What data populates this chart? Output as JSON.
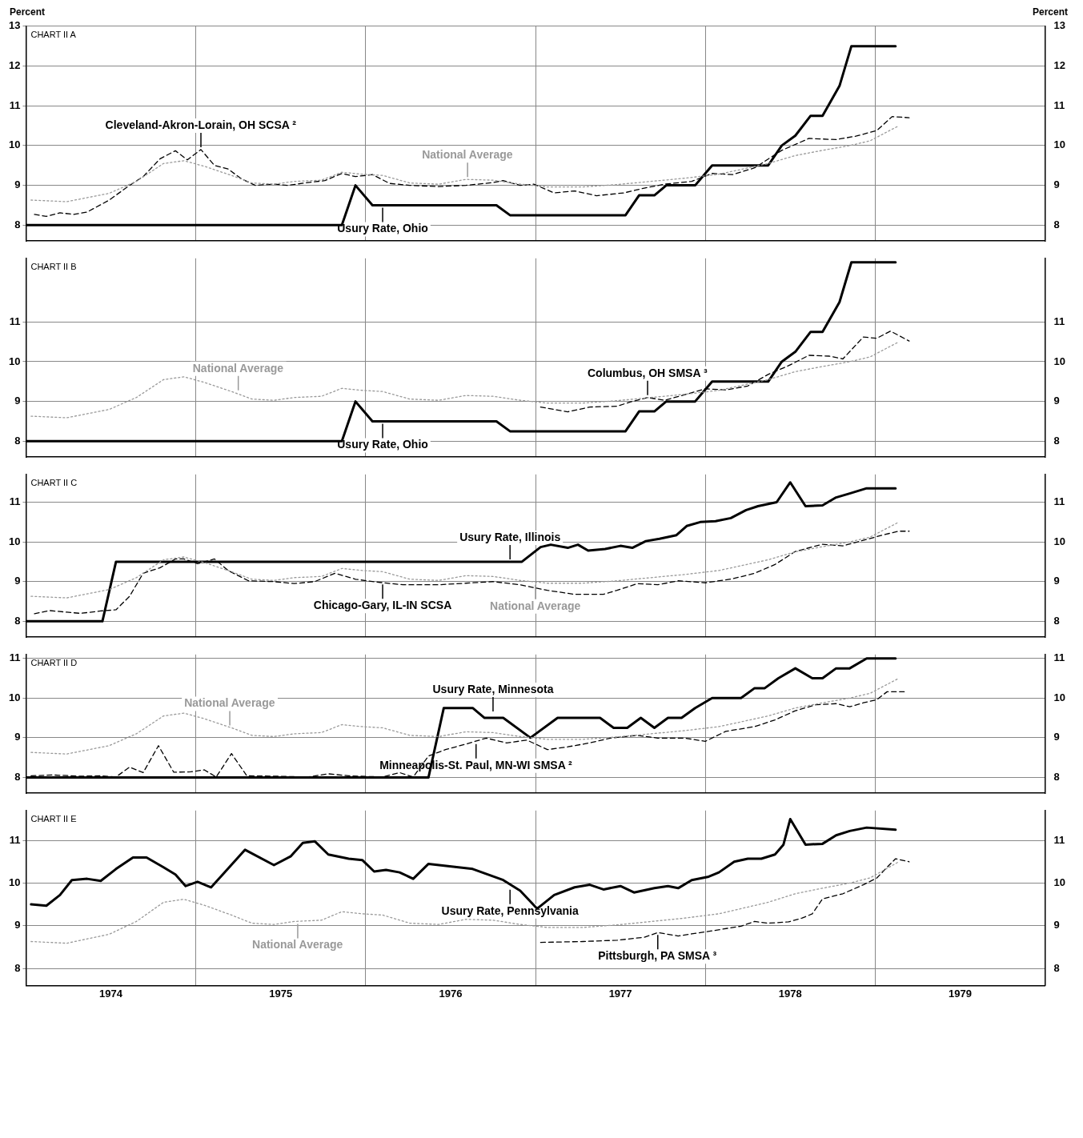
{
  "chart_data": [
    {
      "type": "line",
      "ylabel": "Percent",
      "y2label": "Percent",
      "annotations": [
        "CHART II A",
        {
          "text": "Cleveland-Akron-Lorain, OH SCSA ²",
          "x": 1975.03,
          "y": 9.9
        },
        {
          "text": "National Average",
          "x": 1976.6,
          "y": 9.15
        },
        {
          "text": "Usury Rate, Ohio",
          "x": 1976.1,
          "y": 8.5
        }
      ],
      "xlim": [
        1974,
        1980
      ],
      "xticks": [
        1974,
        1975,
        1976,
        1977,
        1978,
        1979,
        1980
      ],
      "ylim": [
        7.6,
        13
      ],
      "yticks": [
        8,
        9,
        10,
        11,
        12,
        13
      ],
      "y2lim": [
        7.6,
        13
      ],
      "y2ticks": [
        8,
        9,
        10,
        11,
        12,
        13
      ],
      "grid": true,
      "tick_labels": "y",
      "series": [
        {
          "color": "#999999",
          "line_style": "dotted",
          "x": [
            1974.03,
            1974.24,
            1974.49,
            1974.65,
            1974.81,
            1974.93,
            1975.05,
            1975.21,
            1975.33,
            1975.46,
            1975.58,
            1975.74,
            1975.86,
            1975.98,
            1976.1,
            1976.26,
            1976.43,
            1976.59,
            1976.75,
            1976.91,
            1977.07,
            1977.28,
            1977.48,
            1977.68,
            1977.88,
            1978.08,
            1978.21,
            1978.37,
            1978.53,
            1978.69,
            1978.85,
            1978.97,
            1979.05,
            1979.14
          ],
          "values": [
            8.63,
            8.59,
            8.8,
            9.1,
            9.55,
            9.62,
            9.48,
            9.25,
            9.06,
            9.03,
            9.1,
            9.13,
            9.33,
            9.28,
            9.25,
            9.06,
            9.03,
            9.15,
            9.13,
            9.03,
            8.96,
            8.96,
            9.02,
            9.1,
            9.18,
            9.28,
            9.4,
            9.55,
            9.75,
            9.88,
            10.0,
            10.12,
            10.3,
            10.5
          ]
        },
        {
          "color": "#000000",
          "line_style": "dashed",
          "x": [
            1974.05,
            1974.12,
            1974.2,
            1974.28,
            1974.36,
            1974.49,
            1974.61,
            1974.69,
            1974.79,
            1974.88,
            1974.95,
            1975.03,
            1975.11,
            1975.19,
            1975.27,
            1975.35,
            1975.46,
            1975.54,
            1975.66,
            1975.76,
            1975.86,
            1975.94,
            1976.04,
            1976.14,
            1976.26,
            1976.43,
            1976.59,
            1976.75,
            1976.81,
            1976.91,
            1976.99,
            1977.11,
            1977.23,
            1977.36,
            1977.52,
            1977.64,
            1977.76,
            1977.92,
            1978.04,
            1978.16,
            1978.29,
            1978.45,
            1978.61,
            1978.77,
            1978.89,
            1979.01,
            1979.1,
            1979.2
          ],
          "values": [
            8.27,
            8.22,
            8.31,
            8.27,
            8.33,
            8.63,
            9.0,
            9.22,
            9.67,
            9.87,
            9.64,
            9.9,
            9.5,
            9.41,
            9.16,
            9.0,
            9.03,
            9.0,
            9.07,
            9.12,
            9.3,
            9.22,
            9.27,
            9.05,
            9.0,
            8.97,
            9.0,
            9.07,
            9.12,
            9.0,
            9.03,
            8.81,
            8.86,
            8.74,
            8.81,
            8.93,
            9.03,
            9.1,
            9.3,
            9.27,
            9.44,
            9.88,
            10.18,
            10.15,
            10.24,
            10.38,
            10.73,
            10.7
          ]
        },
        {
          "color": "#000000",
          "line_style": "solid",
          "x": [
            1974.0,
            1975.86,
            1975.94,
            1976.04,
            1976.77,
            1976.85,
            1977.53,
            1977.61,
            1977.7,
            1977.77,
            1977.94,
            1978.04,
            1978.37,
            1978.45,
            1978.53,
            1978.62,
            1978.69,
            1978.79,
            1978.86,
            1979.12
          ],
          "values": [
            8,
            8,
            9,
            8.5,
            8.5,
            8.25,
            8.25,
            8.75,
            8.75,
            9,
            9,
            9.5,
            9.5,
            10,
            10.25,
            10.75,
            10.75,
            11.5,
            12.5,
            12.5
          ]
        }
      ]
    },
    {
      "type": "line",
      "annotations": [
        "CHART II B",
        {
          "text": "National Average",
          "x": 1975.25,
          "y": 9.22
        },
        {
          "text": "Columbus, OH SMSA ³",
          "x": 1977.66,
          "y": 9.1
        },
        {
          "text": "Usury Rate, Ohio",
          "x": 1976.1,
          "y": 8.5
        }
      ],
      "xlim": [
        1974,
        1980
      ],
      "xticks": [
        1974,
        1975,
        1976,
        1977,
        1978,
        1979,
        1980
      ],
      "ylim": [
        7.6,
        12.6
      ],
      "yticks": [
        8,
        9,
        10,
        11
      ],
      "y2lim": [
        7.6,
        12.6
      ],
      "y2ticks": [
        8,
        9,
        10,
        11
      ],
      "grid": true,
      "tick_labels": "y",
      "series": [
        {
          "color": "#999999",
          "line_style": "dotted",
          "x": [
            1974.03,
            1974.24,
            1974.49,
            1974.65,
            1974.81,
            1974.93,
            1975.05,
            1975.21,
            1975.33,
            1975.46,
            1975.58,
            1975.74,
            1975.86,
            1975.98,
            1976.1,
            1976.26,
            1976.43,
            1976.59,
            1976.75,
            1976.91,
            1977.07,
            1977.28,
            1977.48,
            1977.68,
            1977.88,
            1978.08,
            1978.21,
            1978.37,
            1978.53,
            1978.69,
            1978.85,
            1978.97,
            1979.05,
            1979.14
          ],
          "values": [
            8.63,
            8.59,
            8.8,
            9.1,
            9.55,
            9.62,
            9.48,
            9.25,
            9.06,
            9.03,
            9.1,
            9.13,
            9.33,
            9.28,
            9.25,
            9.06,
            9.03,
            9.15,
            9.13,
            9.03,
            8.96,
            8.96,
            9.02,
            9.1,
            9.18,
            9.28,
            9.4,
            9.55,
            9.75,
            9.88,
            10.0,
            10.12,
            10.3,
            10.5
          ]
        },
        {
          "color": "#000000",
          "line_style": "dashed",
          "x": [
            1977.03,
            1977.19,
            1977.32,
            1977.48,
            1977.56,
            1977.66,
            1977.76,
            1977.88,
            1978.0,
            1978.12,
            1978.25,
            1978.37,
            1978.49,
            1978.61,
            1978.73,
            1978.81,
            1978.93,
            1979.01,
            1979.09,
            1979.2
          ],
          "values": [
            8.86,
            8.74,
            8.86,
            8.88,
            8.99,
            9.1,
            9.03,
            9.17,
            9.32,
            9.29,
            9.39,
            9.68,
            9.9,
            10.16,
            10.14,
            10.07,
            10.62,
            10.59,
            10.77,
            10.52
          ]
        },
        {
          "color": "#000000",
          "line_style": "solid",
          "x": [
            1974.0,
            1975.86,
            1975.94,
            1976.04,
            1976.77,
            1976.85,
            1977.53,
            1977.61,
            1977.7,
            1977.77,
            1977.94,
            1978.04,
            1978.37,
            1978.45,
            1978.53,
            1978.62,
            1978.69,
            1978.79,
            1978.86,
            1979.12
          ],
          "values": [
            8,
            8,
            9,
            8.5,
            8.5,
            8.25,
            8.25,
            8.75,
            8.75,
            9,
            9,
            9.5,
            9.5,
            10,
            10.25,
            10.75,
            10.75,
            11.5,
            12.5,
            12.5
          ]
        }
      ]
    },
    {
      "type": "line",
      "annotations": [
        "CHART II C",
        {
          "text": "Usury Rate, Illinois",
          "x": 1976.85,
          "y": 9.5
        },
        {
          "text": "National Average",
          "x": 1977.0,
          "y": 8.98
        },
        {
          "text": "Chicago-Gary, IL-IN SCSA",
          "x": 1976.1,
          "y": 8.99
        }
      ],
      "xlim": [
        1974,
        1980
      ],
      "xticks": [
        1974,
        1975,
        1976,
        1977,
        1978,
        1979,
        1980
      ],
      "ylim": [
        7.6,
        11.7
      ],
      "yticks": [
        8,
        9,
        10,
        11
      ],
      "y2lim": [
        7.6,
        11.7
      ],
      "y2ticks": [
        8,
        9,
        10,
        11
      ],
      "grid": true,
      "tick_labels": "y",
      "series": [
        {
          "color": "#999999",
          "line_style": "dotted",
          "x": [
            1974.03,
            1974.24,
            1974.49,
            1974.65,
            1974.81,
            1974.93,
            1975.05,
            1975.21,
            1975.33,
            1975.46,
            1975.58,
            1975.74,
            1975.86,
            1975.98,
            1976.1,
            1976.26,
            1976.43,
            1976.59,
            1976.75,
            1976.91,
            1977.07,
            1977.28,
            1977.48,
            1977.68,
            1977.88,
            1978.08,
            1978.21,
            1978.37,
            1978.53,
            1978.69,
            1978.85,
            1978.97,
            1979.05,
            1979.14
          ],
          "values": [
            8.63,
            8.59,
            8.8,
            9.1,
            9.55,
            9.62,
            9.48,
            9.25,
            9.06,
            9.03,
            9.1,
            9.13,
            9.33,
            9.28,
            9.25,
            9.06,
            9.03,
            9.15,
            9.13,
            9.03,
            8.96,
            8.96,
            9.02,
            9.1,
            9.18,
            9.28,
            9.4,
            9.55,
            9.75,
            9.88,
            10.0,
            10.12,
            10.3,
            10.5
          ]
        },
        {
          "color": "#000000",
          "line_style": "dashed",
          "x": [
            1974.05,
            1974.14,
            1974.24,
            1974.32,
            1974.44,
            1974.53,
            1974.61,
            1974.69,
            1974.79,
            1974.88,
            1974.93,
            1975.01,
            1975.11,
            1975.19,
            1975.31,
            1975.46,
            1975.58,
            1975.7,
            1975.82,
            1975.94,
            1976.06,
            1976.22,
            1976.43,
            1976.59,
            1976.75,
            1976.91,
            1977.07,
            1977.23,
            1977.4,
            1977.48,
            1977.6,
            1977.72,
            1977.84,
            1978.0,
            1978.16,
            1978.29,
            1978.41,
            1978.53,
            1978.69,
            1978.81,
            1978.93,
            1979.05,
            1979.14,
            1979.2
          ],
          "values": [
            8.19,
            8.27,
            8.23,
            8.2,
            8.26,
            8.29,
            8.63,
            9.21,
            9.35,
            9.57,
            9.57,
            9.45,
            9.57,
            9.28,
            9.02,
            9.0,
            8.95,
            9.0,
            9.21,
            9.06,
            8.99,
            8.92,
            8.92,
            8.96,
            9.0,
            8.92,
            8.78,
            8.68,
            8.68,
            8.78,
            8.95,
            8.92,
            9.02,
            8.97,
            9.07,
            9.21,
            9.43,
            9.76,
            9.94,
            9.9,
            10.04,
            10.18,
            10.27,
            10.27
          ]
        },
        {
          "color": "#000000",
          "line_style": "solid",
          "x": [
            1974.0,
            1974.45,
            1974.53,
            1976.92,
            1977.03,
            1977.09,
            1977.19,
            1977.25,
            1977.31,
            1977.41,
            1977.5,
            1977.57,
            1977.65,
            1977.73,
            1977.83,
            1977.89,
            1977.97,
            1978.06,
            1978.15,
            1978.24,
            1978.31,
            1978.42,
            1978.5,
            1978.59,
            1978.69,
            1978.77,
            1978.85,
            1978.95,
            1979.12
          ],
          "values": [
            8,
            8,
            9.5,
            9.5,
            9.87,
            9.93,
            9.85,
            9.93,
            9.78,
            9.82,
            9.9,
            9.85,
            10.02,
            10.08,
            10.17,
            10.4,
            10.5,
            10.52,
            10.6,
            10.8,
            10.9,
            11.0,
            11.5,
            10.9,
            10.92,
            11.12,
            11.22,
            11.35,
            11.35
          ]
        }
      ]
    },
    {
      "type": "line",
      "annotations": [
        "CHART II D",
        {
          "text": "National Average",
          "x": 1975.2,
          "y": 9.25
        },
        {
          "text": "Usury Rate, Minnesota",
          "x": 1976.75,
          "y": 9.6
        },
        {
          "text": "Minneapolis-St. Paul, MN-WI SMSA ²",
          "x": 1976.65,
          "y": 8.9
        }
      ],
      "xlim": [
        1974,
        1980
      ],
      "xticks": [
        1974,
        1975,
        1976,
        1977,
        1978,
        1979,
        1980
      ],
      "ylim": [
        7.6,
        11.1
      ],
      "yticks": [
        8,
        9,
        10,
        11
      ],
      "y2lim": [
        7.6,
        11.1
      ],
      "y2ticks": [
        8,
        9,
        10,
        11
      ],
      "grid": true,
      "tick_labels": "y",
      "series": [
        {
          "color": "#999999",
          "line_style": "dotted",
          "x": [
            1974.03,
            1974.24,
            1974.49,
            1974.65,
            1974.81,
            1974.93,
            1975.05,
            1975.21,
            1975.33,
            1975.46,
            1975.58,
            1975.74,
            1975.86,
            1975.98,
            1976.1,
            1976.26,
            1976.43,
            1976.59,
            1976.75,
            1976.91,
            1977.07,
            1977.28,
            1977.48,
            1977.68,
            1977.88,
            1978.08,
            1978.21,
            1978.37,
            1978.53,
            1978.69,
            1978.85,
            1978.97,
            1979.05,
            1979.14
          ],
          "values": [
            8.63,
            8.59,
            8.8,
            9.1,
            9.55,
            9.62,
            9.48,
            9.25,
            9.06,
            9.03,
            9.1,
            9.13,
            9.33,
            9.28,
            9.25,
            9.06,
            9.03,
            9.15,
            9.13,
            9.03,
            8.96,
            8.96,
            9.02,
            9.1,
            9.18,
            9.28,
            9.4,
            9.55,
            9.75,
            9.88,
            10.0,
            10.12,
            10.3,
            10.5
          ]
        },
        {
          "color": "#000000",
          "line_style": "dashed",
          "x": [
            1974.03,
            1974.16,
            1974.32,
            1974.44,
            1974.53,
            1974.61,
            1974.69,
            1974.78,
            1974.87,
            1974.97,
            1975.05,
            1975.12,
            1975.21,
            1975.3,
            1975.46,
            1975.66,
            1975.78,
            1975.9,
            1976.1,
            1976.2,
            1976.28,
            1976.37,
            1976.47,
            1976.59,
            1976.71,
            1976.83,
            1976.95,
            1977.07,
            1977.19,
            1977.32,
            1977.44,
            1977.6,
            1977.72,
            1977.88,
            1978.0,
            1978.12,
            1978.29,
            1978.41,
            1978.53,
            1978.65,
            1978.77,
            1978.85,
            1978.93,
            1979.01,
            1979.07,
            1979.18
          ],
          "values": [
            8.04,
            8.06,
            8.03,
            8.04,
            8.01,
            8.26,
            8.12,
            8.8,
            8.13,
            8.14,
            8.19,
            8.01,
            8.6,
            8.04,
            8.03,
            8.01,
            8.09,
            8.04,
            8.01,
            8.12,
            8.01,
            8.54,
            8.7,
            8.84,
            8.99,
            8.87,
            8.94,
            8.7,
            8.77,
            8.87,
            8.99,
            9.06,
            8.99,
            8.99,
            8.91,
            9.16,
            9.28,
            9.45,
            9.68,
            9.83,
            9.86,
            9.78,
            9.88,
            9.96,
            10.16,
            10.16
          ]
        },
        {
          "color": "#000000",
          "line_style": "solid",
          "x": [
            1974.0,
            1976.37,
            1976.46,
            1976.63,
            1976.7,
            1976.81,
            1976.97,
            1977.13,
            1977.38,
            1977.46,
            1977.54,
            1977.62,
            1977.7,
            1977.78,
            1977.86,
            1977.94,
            1978.04,
            1978.21,
            1978.29,
            1978.35,
            1978.43,
            1978.53,
            1978.63,
            1978.69,
            1978.77,
            1978.85,
            1978.95,
            1979.12
          ],
          "values": [
            8,
            8,
            9.75,
            9.75,
            9.5,
            9.5,
            9.0,
            9.5,
            9.5,
            9.25,
            9.25,
            9.5,
            9.25,
            9.5,
            9.5,
            9.75,
            10,
            10,
            10.25,
            10.25,
            10.5,
            10.75,
            10.5,
            10.5,
            10.75,
            10.75,
            11,
            11
          ]
        }
      ]
    },
    {
      "type": "line",
      "annotations": [
        "CHART II E",
        {
          "text": "Usury Rate, Pennsylvania",
          "x": 1976.85,
          "y": 9.9
        },
        {
          "text": "National Average",
          "x": 1975.6,
          "y": 9.1
        },
        {
          "text": "Pittsburgh, PA SMSA ³",
          "x": 1977.72,
          "y": 8.84
        }
      ],
      "xlim": [
        1974,
        1980
      ],
      "xticks": [
        {
          "value": 1974,
          "label": null
        },
        {
          "value": 1974.5,
          "label": "1974"
        },
        {
          "value": 1975,
          "label": null
        },
        {
          "value": 1975.5,
          "label": "1975"
        },
        {
          "value": 1976,
          "label": null
        },
        {
          "value": 1976.5,
          "label": "1976"
        },
        {
          "value": 1977,
          "label": null
        },
        {
          "value": 1977.5,
          "label": "1977"
        },
        {
          "value": 1978,
          "label": null
        },
        {
          "value": 1978.5,
          "label": "1978"
        },
        {
          "value": 1979,
          "label": null
        },
        {
          "value": 1979.5,
          "label": "1979"
        },
        {
          "value": 1980,
          "label": null
        }
      ],
      "ylim": [
        7.6,
        11.7
      ],
      "yticks": [
        8,
        9,
        10,
        11
      ],
      "y2lim": [
        7.6,
        11.7
      ],
      "y2ticks": [
        8,
        9,
        10,
        11
      ],
      "grid": true,
      "series": [
        {
          "color": "#999999",
          "line_style": "dotted",
          "x": [
            1974.03,
            1974.24,
            1974.49,
            1974.65,
            1974.81,
            1974.93,
            1975.05,
            1975.21,
            1975.33,
            1975.46,
            1975.58,
            1975.74,
            1975.86,
            1975.98,
            1976.1,
            1976.26,
            1976.43,
            1976.59,
            1976.75,
            1976.91,
            1977.07,
            1977.28,
            1977.48,
            1977.68,
            1977.88,
            1978.08,
            1978.21,
            1978.37,
            1978.53,
            1978.69,
            1978.85,
            1978.97,
            1979.05,
            1979.14
          ],
          "values": [
            8.63,
            8.59,
            8.8,
            9.1,
            9.55,
            9.62,
            9.48,
            9.25,
            9.06,
            9.03,
            9.1,
            9.13,
            9.33,
            9.28,
            9.25,
            9.06,
            9.03,
            9.15,
            9.13,
            9.03,
            8.96,
            8.96,
            9.02,
            9.1,
            9.18,
            9.28,
            9.4,
            9.55,
            9.75,
            9.88,
            10.0,
            10.12,
            10.3,
            10.5
          ]
        },
        {
          "color": "#000000",
          "line_style": "dashed",
          "x": [
            1977.03,
            1977.28,
            1977.48,
            1977.64,
            1977.72,
            1977.84,
            1977.92,
            1978.04,
            1978.21,
            1978.29,
            1978.37,
            1978.49,
            1978.57,
            1978.63,
            1978.69,
            1978.81,
            1978.93,
            1979.01,
            1979.07,
            1979.12,
            1979.2
          ],
          "values": [
            8.61,
            8.63,
            8.66,
            8.73,
            8.84,
            8.76,
            8.81,
            8.88,
            8.99,
            9.1,
            9.06,
            9.09,
            9.18,
            9.28,
            9.63,
            9.75,
            9.96,
            10.12,
            10.37,
            10.57,
            10.5
          ]
        },
        {
          "color": "#000000",
          "line_style": "solid",
          "x": [
            1974.03,
            1974.12,
            1974.2,
            1974.27,
            1974.36,
            1974.44,
            1974.53,
            1974.63,
            1974.71,
            1974.81,
            1974.88,
            1974.94,
            1975.01,
            1975.09,
            1975.17,
            1975.29,
            1975.46,
            1975.56,
            1975.63,
            1975.7,
            1975.78,
            1975.9,
            1975.98,
            1976.05,
            1976.12,
            1976.2,
            1976.28,
            1976.37,
            1976.63,
            1976.81,
            1976.91,
            1977.01,
            1977.11,
            1977.23,
            1977.32,
            1977.4,
            1977.5,
            1977.58,
            1977.7,
            1977.78,
            1977.84,
            1977.92,
            1978.02,
            1978.08,
            1978.17,
            1978.25,
            1978.33,
            1978.41,
            1978.46,
            1978.5,
            1978.59,
            1978.69,
            1978.77,
            1978.85,
            1978.95,
            1979.12
          ],
          "values": [
            9.5,
            9.47,
            9.72,
            10.07,
            10.1,
            10.05,
            10.33,
            10.6,
            10.6,
            10.37,
            10.2,
            9.93,
            10.03,
            9.9,
            10.25,
            10.78,
            10.42,
            10.63,
            10.94,
            10.98,
            10.67,
            10.57,
            10.54,
            10.27,
            10.31,
            10.25,
            10.1,
            10.45,
            10.33,
            10.07,
            9.82,
            9.4,
            9.72,
            9.9,
            9.96,
            9.85,
            9.93,
            9.78,
            9.88,
            9.93,
            9.88,
            10.07,
            10.15,
            10.25,
            10.5,
            10.57,
            10.57,
            10.67,
            10.9,
            11.5,
            10.9,
            10.92,
            11.12,
            11.22,
            11.3,
            11.25
          ]
        }
      ]
    }
  ]
}
